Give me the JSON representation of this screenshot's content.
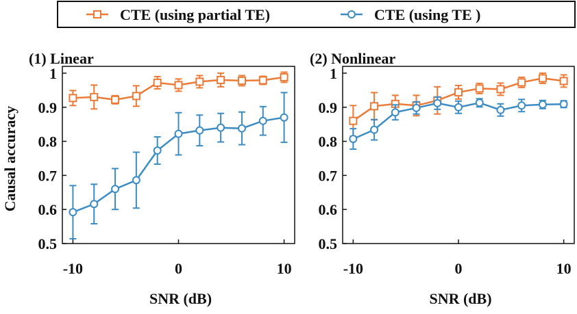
{
  "colors": {
    "partial": "#ec7a36",
    "te": "#3b8cc4",
    "axis": "#111111"
  },
  "legend": {
    "entries": [
      {
        "label": "CTE (using partial TE)",
        "series": "partial",
        "marker": "square"
      },
      {
        "label": "CTE (using TE )",
        "series": "te",
        "marker": "circle"
      }
    ]
  },
  "shared_ylabel": "Causal accuracy",
  "chart_data": [
    {
      "type": "line",
      "title": "(1) Linear",
      "xlabel": "SNR (dB)",
      "ylabel": "Causal accuracy",
      "xlim": [
        -11,
        11
      ],
      "ylim": [
        0.5,
        1.02
      ],
      "xticks": [
        -10,
        0,
        10
      ],
      "xtick_labels": [
        "-10",
        "0",
        "10"
      ],
      "yticks": [
        0.5,
        0.6,
        0.7,
        0.8,
        0.9,
        1.0
      ],
      "ytick_labels": [
        "0.5",
        "0.6",
        "0.7",
        "0.8",
        "0.9",
        "1"
      ],
      "x": [
        -10,
        -8,
        -6,
        -4,
        -2,
        0,
        2,
        4,
        6,
        8,
        10
      ],
      "series": [
        {
          "name": "CTE (using partial TE)",
          "key": "partial",
          "marker": "square",
          "values": [
            0.927,
            0.93,
            0.922,
            0.933,
            0.972,
            0.965,
            0.975,
            0.98,
            0.978,
            0.979,
            0.988
          ],
          "errors": [
            0.022,
            0.035,
            0.012,
            0.03,
            0.018,
            0.018,
            0.018,
            0.02,
            0.015,
            0.012,
            0.015
          ]
        },
        {
          "name": "CTE (using TE )",
          "key": "te",
          "marker": "circle",
          "values": [
            0.592,
            0.616,
            0.66,
            0.686,
            0.773,
            0.822,
            0.832,
            0.84,
            0.838,
            0.86,
            0.87
          ],
          "errors": [
            0.078,
            0.058,
            0.06,
            0.082,
            0.04,
            0.062,
            0.045,
            0.042,
            0.048,
            0.042,
            0.073
          ]
        }
      ]
    },
    {
      "type": "line",
      "title": "(2) Nonlinear",
      "xlabel": "SNR (dB)",
      "ylabel": "",
      "xlim": [
        -11,
        11
      ],
      "ylim": [
        0.5,
        1.02
      ],
      "xticks": [
        -10,
        0,
        10
      ],
      "xtick_labels": [
        "-10",
        "0",
        "10"
      ],
      "yticks": [
        0.5,
        0.6,
        0.7,
        0.8,
        0.9,
        1.0
      ],
      "ytick_labels": [
        "0.5",
        "0.6",
        "0.7",
        "0.8",
        "0.9",
        "1"
      ],
      "x": [
        -10,
        -8,
        -6,
        -4,
        -2,
        0,
        2,
        4,
        6,
        8,
        10
      ],
      "series": [
        {
          "name": "CTE (using partial TE)",
          "key": "partial",
          "marker": "square",
          "values": [
            0.86,
            0.903,
            0.91,
            0.905,
            0.92,
            0.944,
            0.955,
            0.953,
            0.973,
            0.985,
            0.977
          ],
          "errors": [
            0.045,
            0.04,
            0.025,
            0.03,
            0.04,
            0.02,
            0.015,
            0.018,
            0.015,
            0.015,
            0.018
          ]
        },
        {
          "name": "CTE (using TE )",
          "key": "te",
          "marker": "circle",
          "values": [
            0.807,
            0.834,
            0.885,
            0.898,
            0.912,
            0.9,
            0.913,
            0.892,
            0.905,
            0.908,
            0.909
          ],
          "errors": [
            0.03,
            0.03,
            0.022,
            0.018,
            0.018,
            0.018,
            0.012,
            0.018,
            0.018,
            0.012,
            0.01
          ]
        }
      ]
    }
  ]
}
